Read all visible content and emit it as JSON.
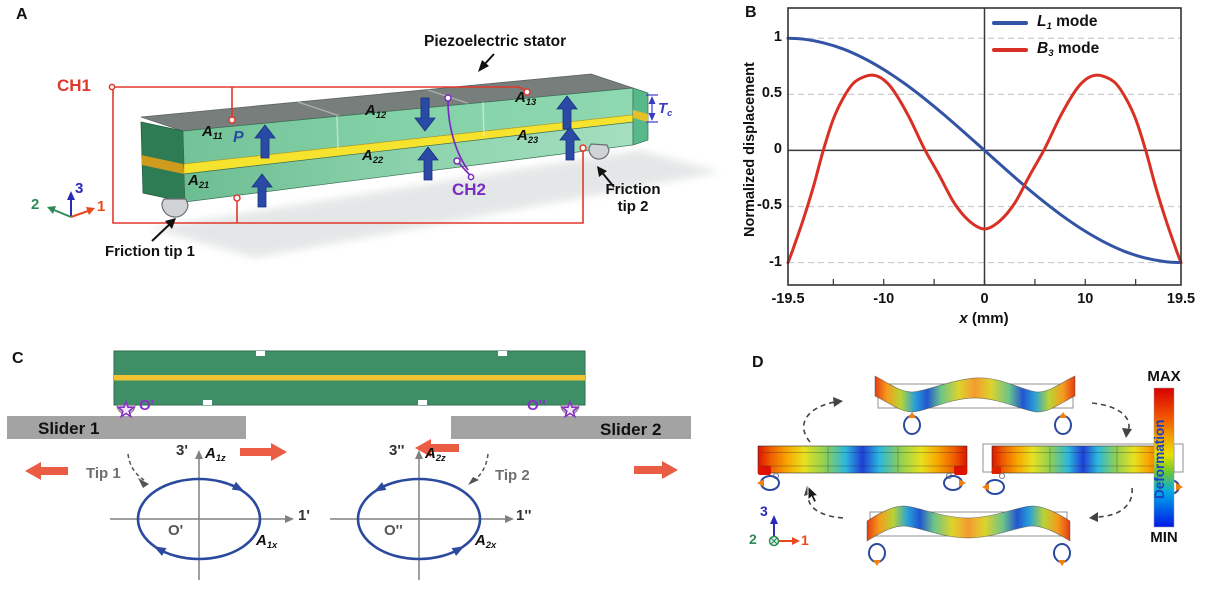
{
  "palette": {
    "wire_red": "#e0392b",
    "purple": "#7a2bbf",
    "polarization_arrow_blue": "#2b4aa6",
    "slider_arrow_red": "#ea5c44",
    "ellipse_blue": "#2b4a9e",
    "beam_green": "#7ccaa0",
    "beam_yellow": "#f0c335",
    "slider_gray": "#a3a3a3"
  },
  "panels": {
    "a": {
      "label": "A",
      "title": "Piezoelectric stator",
      "ch1": "CH1",
      "ch2": "CH2",
      "p": "P",
      "t_main": "T",
      "t_sub": "c",
      "electrodes": [
        {
          "main": "A",
          "sub": "11"
        },
        {
          "main": "A",
          "sub": "12"
        },
        {
          "main": "A",
          "sub": "13"
        },
        {
          "main": "A",
          "sub": "21"
        },
        {
          "main": "A",
          "sub": "22"
        },
        {
          "main": "A",
          "sub": "23"
        }
      ],
      "friction_tip_1": "Friction tip 1",
      "friction_tip_2_line1": "Friction",
      "friction_tip_2_line2": "tip 2",
      "axes": {
        "one": "1",
        "two": "2",
        "three": "3"
      }
    },
    "b": {
      "label": "B"
    },
    "c": {
      "label": "C",
      "slider1": "Slider 1",
      "slider2": "Slider 2",
      "tip1": "Tip 1",
      "tip2": "Tip 2",
      "o_prime": "O'",
      "o_dprime": "O''",
      "axis_3p": "3'",
      "axis_1p": "1'",
      "axis_3pp": "3''",
      "axis_1pp": "1''",
      "a1z": {
        "main": "A",
        "sub": "1z"
      },
      "a1x": {
        "main": "A",
        "sub": "1x"
      },
      "a2z": {
        "main": "A",
        "sub": "2z"
      },
      "a2x": {
        "main": "A",
        "sub": "2x"
      }
    },
    "d": {
      "label": "D",
      "max": "MAX",
      "min": "MIN",
      "colorbar_label": "Deformation",
      "axes": {
        "one": "1",
        "two": "2",
        "three": "3"
      }
    }
  },
  "chart_data": {
    "type": "line",
    "title": "",
    "xlabel_italic": "x",
    "xlabel_rest": " (mm)",
    "ylabel": "Normalized displacement",
    "xlim": [
      -19.5,
      19.5
    ],
    "ylim": [
      -1.2,
      1.27
    ],
    "grid": true,
    "grid_color": "#cccccc",
    "axis_color": "#3a3a3a",
    "legend_position": "top-right",
    "x_ticks": [
      {
        "v": -19.5,
        "label": "-19.5"
      },
      {
        "v": -10,
        "label": "-10"
      },
      {
        "v": 0,
        "label": "0"
      },
      {
        "v": 10,
        "label": "10"
      },
      {
        "v": 19.5,
        "label": "19.5"
      }
    ],
    "x_minor_ticks": [
      -15,
      -10,
      -5,
      0,
      5,
      10,
      15
    ],
    "y_ticks": [
      {
        "v": 1,
        "label": "1"
      },
      {
        "v": 0.5,
        "label": "0.5"
      },
      {
        "v": 0,
        "label": "0"
      },
      {
        "v": -0.5,
        "label": "-0.5"
      },
      {
        "v": -1,
        "label": "-1"
      }
    ],
    "gridlines_y": [
      1,
      0.5,
      -0.5,
      -1
    ],
    "series": [
      {
        "name_main": "L",
        "name_sub": "1",
        "name_rest": " mode",
        "color": "#3353a4",
        "x": [
          -19.5,
          -18,
          -16,
          -14,
          -12,
          -10,
          -8,
          -6,
          -4,
          -2,
          0,
          2,
          4,
          6,
          8,
          10,
          12,
          14,
          16,
          18,
          19.5
        ],
        "y": [
          1,
          0.993,
          0.96,
          0.904,
          0.823,
          0.721,
          0.601,
          0.465,
          0.317,
          0.16,
          0,
          -0.16,
          -0.317,
          -0.465,
          -0.601,
          -0.721,
          -0.823,
          -0.904,
          -0.96,
          -0.993,
          -1
        ]
      },
      {
        "name_main": "B",
        "name_sub": "3",
        "name_rest": " mode",
        "color": "#d93025",
        "x": [
          -19.5,
          -19,
          -18,
          -17,
          -16,
          -15,
          -14,
          -13,
          -12,
          -11,
          -10,
          -9,
          -7.5,
          -6,
          -4.5,
          -3,
          -1.5,
          0,
          1.5,
          3,
          4.5,
          6,
          7.5,
          9,
          10,
          11,
          12,
          13,
          14,
          15,
          16,
          17,
          18,
          19,
          19.5
        ],
        "y": [
          -1,
          -0.88,
          -0.62,
          -0.33,
          0,
          0.28,
          0.47,
          0.6,
          0.655,
          0.67,
          0.63,
          0.53,
          0.3,
          0.02,
          -0.22,
          -0.47,
          -0.63,
          -0.7,
          -0.63,
          -0.47,
          -0.22,
          0.02,
          0.3,
          0.53,
          0.63,
          0.67,
          0.655,
          0.6,
          0.47,
          0.28,
          0,
          -0.33,
          -0.62,
          -0.88,
          -1
        ]
      }
    ]
  }
}
